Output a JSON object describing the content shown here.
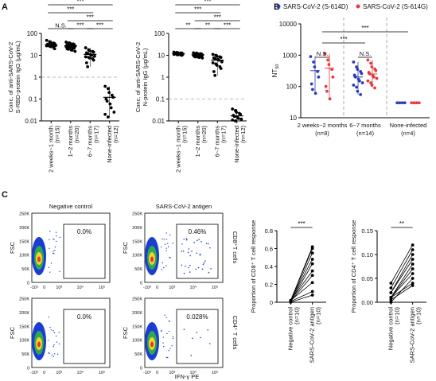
{
  "panels": {
    "a": "A",
    "b": "B",
    "c": "C"
  },
  "chart_data": [
    {
      "id": "A1",
      "type": "scatter",
      "scale": "log",
      "ylim": [
        0.01,
        100
      ],
      "ylabel": [
        "Conc. of anti-SARS-CoV-2",
        "S-RBD-protein IgG (μg/mL)"
      ],
      "yticks": [
        {
          "v": 0.01,
          "t": "0.01"
        },
        {
          "v": 0.1,
          "t": "0.1"
        },
        {
          "v": 1,
          "t": "1"
        },
        {
          "v": 10,
          "t": "10"
        },
        {
          "v": 100,
          "t": "100"
        }
      ],
      "refline": 1,
      "categories": [
        {
          "name": "2 weeks~1 month",
          "n": "(n=15)"
        },
        {
          "name": "1~2 months",
          "n": "(n=20)"
        },
        {
          "name": "6~7 months",
          "n": "(n=17)"
        },
        {
          "name": "None-infected",
          "n": "(n=12)"
        }
      ],
      "series": [
        {
          "values": [
            48,
            42,
            39,
            36,
            34,
            32,
            31,
            30,
            29,
            28,
            27,
            26,
            25,
            23,
            20
          ]
        },
        {
          "values": [
            40,
            37,
            35,
            33,
            31,
            30,
            29,
            28,
            27,
            26,
            25,
            24,
            23,
            22,
            21,
            20,
            19,
            18,
            17,
            15
          ]
        },
        {
          "values": [
            22,
            18,
            16,
            15,
            14,
            13,
            12,
            11,
            10,
            9,
            8.5,
            8,
            7.5,
            7,
            6,
            4.5,
            3
          ]
        },
        {
          "values": [
            0.38,
            0.3,
            0.2,
            0.15,
            0.12,
            0.1,
            0.08,
            0.06,
            0.04,
            0.025,
            0.02,
            0.015
          ]
        }
      ],
      "medians": [
        30,
        27,
        11,
        0.12
      ],
      "brackets": [
        {
          "a": 0,
          "b": 1,
          "s": "N.S."
        },
        {
          "a": 1,
          "b": 2,
          "s": "***"
        },
        {
          "a": 2,
          "b": 3,
          "s": "***"
        },
        {
          "a": 1,
          "b": 3,
          "s": "***"
        },
        {
          "a": 0,
          "b": 2,
          "s": "***"
        },
        {
          "a": 0,
          "b": 3,
          "s": "***"
        }
      ]
    },
    {
      "id": "A2",
      "type": "scatter",
      "scale": "log",
      "ylim": [
        0.01,
        100
      ],
      "ylabel": [
        "Conc. of anti-SARS-CoV-2",
        "N-protein IgG (μg/mL)"
      ],
      "yticks": [
        {
          "v": 0.01,
          "t": "0.01"
        },
        {
          "v": 0.1,
          "t": "0.1"
        },
        {
          "v": 1,
          "t": "1"
        },
        {
          "v": 10,
          "t": "10"
        },
        {
          "v": 100,
          "t": "100"
        }
      ],
      "refline": 0.1,
      "categories": [
        {
          "name": "2 weeks~1 month",
          "n": "(n=15)"
        },
        {
          "name": "1~2 months",
          "n": "(n=20)"
        },
        {
          "name": "6~7 months",
          "n": "(n=17)"
        },
        {
          "name": "None-infected",
          "n": "(n=12)"
        }
      ],
      "series": [
        {
          "values": [
            14,
            13.5,
            13,
            12.8,
            12.5,
            12.2,
            12,
            11.8,
            11.5,
            11.2,
            11,
            10.8,
            10.5,
            10.2,
            10
          ]
        },
        {
          "values": [
            13,
            12.5,
            12,
            11.8,
            11.5,
            11.2,
            11,
            10.8,
            10.5,
            10.3,
            10,
            9.8,
            9.5,
            9.3,
            9,
            8.8,
            8.5,
            8.2,
            8,
            7.5
          ]
        },
        {
          "values": [
            11,
            10,
            9,
            8.5,
            8,
            7.5,
            7,
            6.5,
            6,
            5,
            4.5,
            4,
            3.5,
            3,
            2.5,
            1.8,
            1.2
          ]
        },
        {
          "values": [
            0.035,
            0.03,
            0.025,
            0.022,
            0.02,
            0.018,
            0.016,
            0.015,
            0.013,
            0.012,
            0.011,
            0.01
          ]
        }
      ],
      "medians": [
        12,
        10.5,
        6,
        0.017
      ],
      "brackets": [
        {
          "a": 0,
          "b": 1,
          "s": "**"
        },
        {
          "a": 1,
          "b": 2,
          "s": "**"
        },
        {
          "a": 2,
          "b": 3,
          "s": "***"
        },
        {
          "a": 1,
          "b": 3,
          "s": "***"
        },
        {
          "a": 0,
          "b": 2,
          "s": "***"
        },
        {
          "a": 0,
          "b": 3,
          "s": "***"
        }
      ]
    },
    {
      "id": "B",
      "type": "scatter",
      "scale": "log",
      "ylim": [
        10,
        10000
      ],
      "ylabel": "NT",
      "ylabel_sub": "50",
      "yticks": [
        {
          "v": 10,
          "t": "10"
        },
        {
          "v": 100,
          "t": "100"
        },
        {
          "v": 1000,
          "t": "1000"
        },
        {
          "v": 10000,
          "t": "10000"
        }
      ],
      "legend": [
        {
          "name": "SARS-CoV-2 (S-614D)",
          "color": "#2e3bb5"
        },
        {
          "name": "SARS-CoV-2 (S-614G)",
          "color": "#e83a3a"
        }
      ],
      "groups": [
        {
          "name": "2 weeks~2 months",
          "n": "(n=8)"
        },
        {
          "name": "6~7 months",
          "n": "(n=14)"
        },
        {
          "name": "None-infected",
          "n": "(n=4)"
        }
      ],
      "series": [
        {
          "name": "SARS-CoV-2 (S-614D)",
          "color": "#2e3bb5",
          "groups": [
            [
              900,
              600,
              420,
              300,
              200,
              120,
              80,
              60
            ],
            [
              600,
              420,
              350,
              300,
              260,
              230,
              200,
              170,
              150,
              130,
              110,
              95,
              70,
              55
            ],
            [
              30,
              30,
              30,
              30
            ]
          ]
        },
        {
          "name": "SARS-CoV-2 (S-614G)",
          "color": "#e83a3a",
          "groups": [
            [
              1100,
              700,
              500,
              350,
              200,
              100,
              70,
              40
            ],
            [
              700,
              550,
              420,
              360,
              320,
              280,
              250,
              220,
              200,
              180,
              150,
              130,
              110,
              90
            ],
            [
              30,
              30,
              30,
              30
            ]
          ]
        }
      ],
      "medians": [
        [
          320,
          380
        ],
        [
          200,
          250
        ],
        [
          30,
          30
        ]
      ],
      "brackets": [
        {
          "g": 0,
          "s": "N.S.",
          "lvl": 0
        },
        {
          "g": 1,
          "s": "N.S.",
          "lvl": 0
        },
        {
          "g": [
            0,
            1
          ],
          "s": "***",
          "lvl": 1
        },
        {
          "g": [
            0,
            2
          ],
          "s": "***",
          "lvl": 2
        }
      ]
    },
    {
      "id": "C_CD8",
      "type": "paired",
      "ylim": [
        0,
        0.8
      ],
      "ylabel": "Proportion of CD8⁺ T cell response",
      "yticks": [
        {
          "v": 0,
          "t": "0"
        },
        {
          "v": 0.2,
          "t": "0.2"
        },
        {
          "v": 0.4,
          "t": "0.4"
        },
        {
          "v": 0.6,
          "t": "0.6"
        },
        {
          "v": 0.8,
          "t": "0.8"
        }
      ],
      "categories": [
        {
          "name": "Negative control",
          "n": "(n=10)"
        },
        {
          "name": "SARS-CoV-2 antigen",
          "n": "(n=10)"
        }
      ],
      "pairs": [
        [
          0.02,
          0.62
        ],
        [
          0.02,
          0.6
        ],
        [
          0.01,
          0.55
        ],
        [
          0.02,
          0.48
        ],
        [
          0.01,
          0.43
        ],
        [
          0.02,
          0.35
        ],
        [
          0.01,
          0.3
        ],
        [
          0.02,
          0.22
        ],
        [
          0.01,
          0.12
        ],
        [
          0.0,
          0.08
        ]
      ],
      "sig": "***"
    },
    {
      "id": "C_CD4",
      "type": "paired",
      "ylim": [
        0,
        0.15
      ],
      "ylabel": "Proportion of CD4⁺ T cell response",
      "yticks": [
        {
          "v": 0,
          "t": "0.00"
        },
        {
          "v": 0.05,
          "t": "0.05"
        },
        {
          "v": 0.1,
          "t": "0.10"
        },
        {
          "v": 0.15,
          "t": "0.15"
        }
      ],
      "categories": [
        {
          "name": "Negative control",
          "n": "(n=10)"
        },
        {
          "name": "SARS-CoV-2 antigen",
          "n": "(n=10)"
        }
      ],
      "pairs": [
        [
          0.04,
          0.12
        ],
        [
          0.03,
          0.11
        ],
        [
          0.02,
          0.1
        ],
        [
          0.02,
          0.09
        ],
        [
          0.01,
          0.08
        ],
        [
          0.01,
          0.07
        ],
        [
          0.01,
          0.06
        ],
        [
          0.0,
          0.05
        ],
        [
          0.01,
          0.04
        ],
        [
          0.005,
          0.035
        ]
      ],
      "sig": "**"
    }
  ],
  "flow": {
    "col_titles": [
      "Negative control",
      "SARS-CoV-2 antigen"
    ],
    "row_labels": [
      "CD8⁺T cells",
      "CD4⁺ T cells"
    ],
    "ytick_labels": [
      "250K",
      "200K",
      "150K",
      "100K",
      "50K",
      "0"
    ],
    "xtick_labels": [
      "-10³",
      "0",
      "10³",
      "10⁴",
      "10⁵"
    ],
    "ylabel": "FSC",
    "xlabel": "IFN-γ PE",
    "gates": [
      "0.0%",
      "0.46%",
      "0.0%",
      "0.028%"
    ]
  }
}
